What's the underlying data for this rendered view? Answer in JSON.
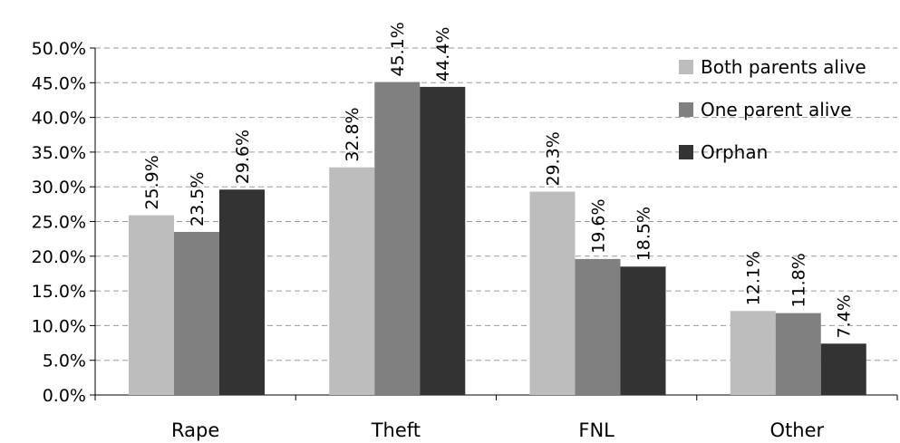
{
  "chart_data": {
    "type": "bar",
    "categories": [
      "Rape",
      "Theft",
      "FNL",
      "Other"
    ],
    "series": [
      {
        "name": "Both parents alive",
        "values": [
          25.9,
          32.8,
          29.3,
          12.1
        ],
        "labels": [
          "25.9%",
          "32.8%",
          "29.3%",
          "12.1%"
        ],
        "color": "#bdbdbd"
      },
      {
        "name": "One parent alive",
        "values": [
          23.5,
          45.1,
          19.6,
          11.8
        ],
        "labels": [
          "23.5%",
          "45.1%",
          "19.6%",
          "11.8%"
        ],
        "color": "#808080"
      },
      {
        "name": "Orphan",
        "values": [
          29.6,
          44.4,
          18.5,
          7.4
        ],
        "labels": [
          "29.6%",
          "44.4%",
          "18.5%",
          "7.4%"
        ],
        "color": "#333333"
      }
    ],
    "y_ticks": [
      "0.0%",
      "5.0%",
      "10.0%",
      "15.0%",
      "20.0%",
      "25.0%",
      "30.0%",
      "35.0%",
      "40.0%",
      "45.0%",
      "50.0%"
    ],
    "ylim": [
      0,
      50
    ],
    "grid": true,
    "legend_position": "top-right",
    "title": "",
    "xlabel": "",
    "ylabel": ""
  }
}
